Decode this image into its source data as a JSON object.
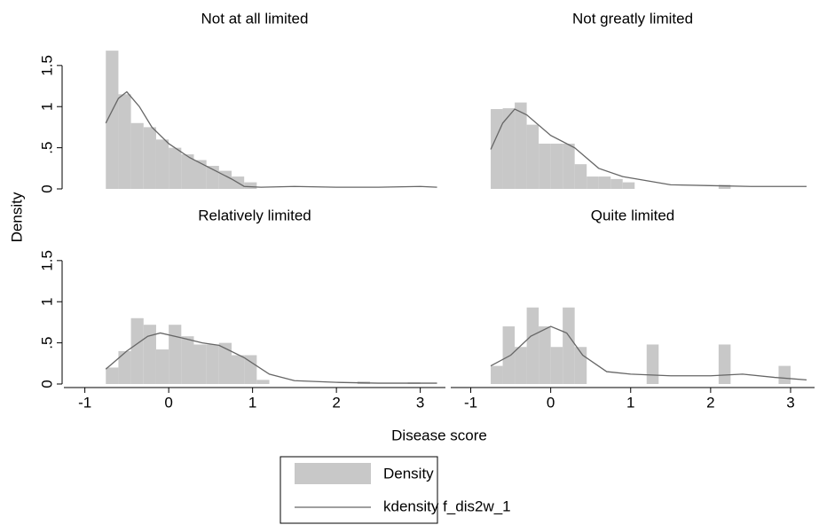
{
  "x_label": "Disease score",
  "y_label": "Density",
  "chart_data": [
    {
      "type": "histogram",
      "title": "Not at all limited",
      "name": "Density",
      "color": "#c8c8c8",
      "bins": [
        -0.75,
        -0.6,
        -0.45,
        -0.3,
        -0.15,
        0,
        0.15,
        0.3,
        0.45,
        0.6,
        0.75,
        0.9,
        1.05,
        1.2,
        1.35,
        1.5,
        1.65,
        1.8,
        1.95,
        2.1,
        2.25,
        2.4,
        2.55,
        2.7,
        2.85,
        3.0
      ],
      "values": [
        1.68,
        1.15,
        0.8,
        0.75,
        0.6,
        0.5,
        0.42,
        0.35,
        0.28,
        0.22,
        0.15,
        0.08,
        0,
        0,
        0,
        0,
        0,
        0,
        0,
        0,
        0,
        0,
        0,
        0,
        0
      ],
      "kde": {
        "name": "kdensity f_dis2w_1",
        "color": "#666666",
        "x": [
          -0.75,
          -0.6,
          -0.5,
          -0.35,
          -0.2,
          0,
          0.25,
          0.5,
          0.75,
          0.9,
          1.1,
          1.5,
          2,
          2.5,
          3,
          3.2
        ],
        "values": [
          0.8,
          1.1,
          1.18,
          1.0,
          0.75,
          0.55,
          0.38,
          0.25,
          0.12,
          0.03,
          0.02,
          0.03,
          0.02,
          0.02,
          0.03,
          0.02
        ]
      },
      "xlim": [
        -1.25,
        3.3
      ],
      "ylim": [
        0,
        1.8
      ],
      "yticks": [
        0,
        {
          "value": 0.5,
          "label": ".5"
        },
        1,
        1.5
      ]
    },
    {
      "type": "histogram",
      "title": "Not greatly limited",
      "color": "#c8c8c8",
      "bins": [
        -0.75,
        -0.6,
        -0.45,
        -0.3,
        -0.15,
        0,
        0.15,
        0.3,
        0.45,
        0.6,
        0.75,
        0.9,
        1.05,
        1.2,
        1.35,
        1.5,
        1.65,
        1.8,
        1.95,
        2.1,
        2.25,
        2.4,
        2.55,
        2.7,
        2.85,
        3.0
      ],
      "values": [
        0.97,
        0.98,
        1.05,
        0.78,
        0.55,
        0.55,
        0.55,
        0.3,
        0.15,
        0.15,
        0.12,
        0.08,
        0,
        0,
        0,
        0,
        0,
        0,
        0,
        0.05,
        0,
        0,
        0,
        0,
        0
      ],
      "kde": {
        "color": "#666666",
        "x": [
          -0.75,
          -0.6,
          -0.45,
          -0.3,
          0,
          0.3,
          0.6,
          0.9,
          1.2,
          1.5,
          2,
          2.5,
          3,
          3.2
        ],
        "values": [
          0.48,
          0.8,
          0.97,
          0.9,
          0.65,
          0.5,
          0.25,
          0.15,
          0.1,
          0.05,
          0.04,
          0.03,
          0.03,
          0.03
        ]
      },
      "xlim": [
        -1.25,
        3.3
      ],
      "ylim": [
        0,
        1.8
      ]
    },
    {
      "type": "histogram",
      "title": "Relatively limited",
      "color": "#c8c8c8",
      "bins": [
        -0.75,
        -0.6,
        -0.45,
        -0.3,
        -0.15,
        0,
        0.15,
        0.3,
        0.45,
        0.6,
        0.75,
        0.9,
        1.05,
        1.2,
        1.35,
        1.5,
        1.65,
        1.8,
        1.95,
        2.1,
        2.25,
        2.4,
        2.55,
        2.7,
        2.85,
        3.0
      ],
      "values": [
        0.2,
        0.4,
        0.8,
        0.72,
        0.42,
        0.72,
        0.58,
        0.48,
        0.48,
        0.5,
        0.35,
        0.35,
        0.05,
        0,
        0,
        0,
        0,
        0,
        0,
        0,
        0.03,
        0,
        0,
        0,
        0.02
      ],
      "kde": {
        "color": "#666666",
        "x": [
          -0.75,
          -0.5,
          -0.25,
          -0.1,
          0.2,
          0.4,
          0.6,
          0.9,
          1.2,
          1.5,
          2,
          2.5,
          3,
          3.2
        ],
        "values": [
          0.18,
          0.4,
          0.58,
          0.62,
          0.55,
          0.5,
          0.47,
          0.32,
          0.12,
          0.04,
          0.02,
          0.01,
          0.01,
          0.01
        ]
      },
      "xlim": [
        -1.25,
        3.3
      ],
      "ylim": [
        0,
        1.8
      ],
      "xticks": [
        -1,
        0,
        1,
        2,
        3
      ],
      "yticks": [
        0,
        {
          "value": 0.5,
          "label": ".5"
        },
        1,
        1.5
      ]
    },
    {
      "type": "histogram",
      "title": "Quite limited",
      "color": "#c8c8c8",
      "bins": [
        -0.75,
        -0.6,
        -0.45,
        -0.3,
        -0.15,
        0,
        0.15,
        0.3,
        0.45,
        0.6,
        0.75,
        0.9,
        1.05,
        1.2,
        1.35,
        1.5,
        1.65,
        1.8,
        1.95,
        2.1,
        2.25,
        2.4,
        2.55,
        2.7,
        2.85,
        3.0
      ],
      "values": [
        0.22,
        0.7,
        0.45,
        0.93,
        0.7,
        0.45,
        0.93,
        0.45,
        0,
        0,
        0,
        0,
        0,
        0.48,
        0,
        0,
        0,
        0,
        0,
        0.48,
        0,
        0,
        0,
        0,
        0.22
      ],
      "kde": {
        "color": "#666666",
        "x": [
          -0.75,
          -0.5,
          -0.25,
          0,
          0.2,
          0.4,
          0.7,
          1,
          1.5,
          2,
          2.4,
          2.8,
          3.2
        ],
        "values": [
          0.22,
          0.35,
          0.58,
          0.7,
          0.62,
          0.35,
          0.15,
          0.12,
          0.1,
          0.1,
          0.12,
          0.08,
          0.05
        ]
      },
      "xlim": [
        -1.25,
        3.3
      ],
      "ylim": [
        0,
        1.8
      ],
      "xticks": [
        -1,
        0,
        1,
        2,
        3
      ]
    }
  ]
}
